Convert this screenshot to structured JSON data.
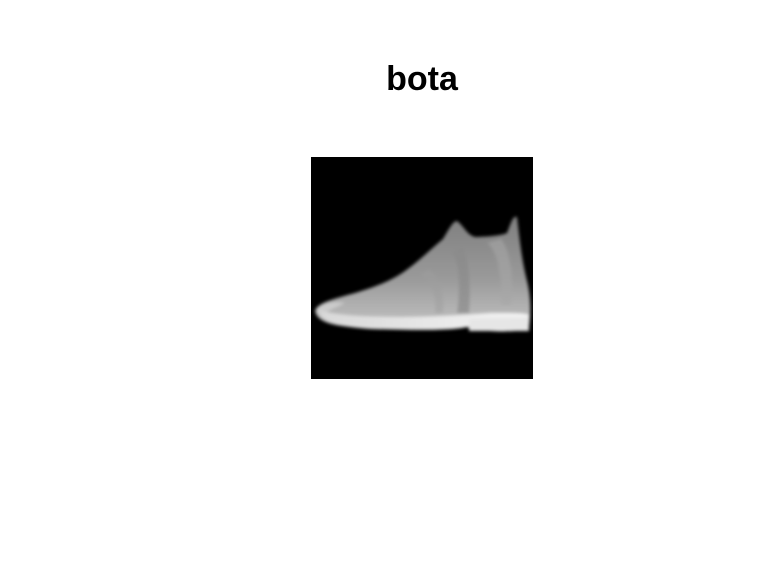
{
  "figure": {
    "title": "bota",
    "image": {
      "subject": "boot-icon",
      "colormap": "gray",
      "background_color": "#000000"
    }
  }
}
